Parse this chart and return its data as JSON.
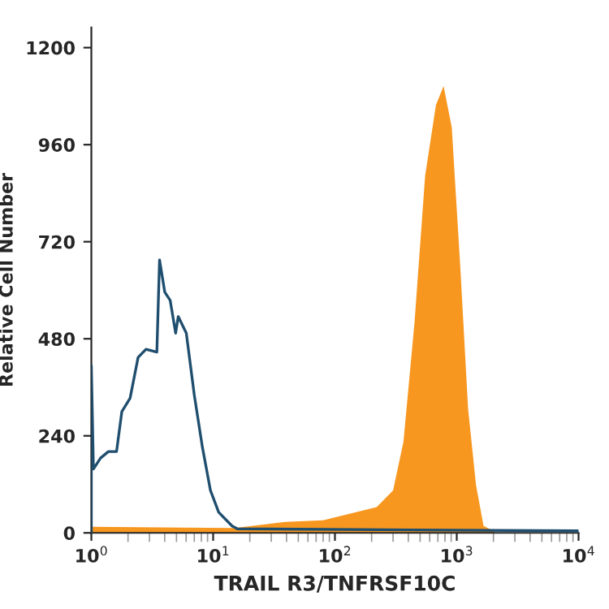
{
  "chart_data": {
    "type": "area",
    "xlabel": "TRAIL R3/TNFRSF10C",
    "ylabel": "Relative Cell Number",
    "log": "x",
    "xlim": [
      1,
      10000
    ],
    "ylim": [
      0,
      1250
    ],
    "xticks": [
      {
        "value": 1,
        "label": "10$^{0}$"
      },
      {
        "value": 10,
        "label": "10$^{1}$"
      },
      {
        "value": 100,
        "label": "10$^{2}$"
      },
      {
        "value": 1000,
        "label": "10$^{3}$"
      },
      {
        "value": 10000,
        "label": "10$^{4}$"
      }
    ],
    "yticks": [
      0,
      240,
      480,
      720,
      960,
      1200
    ],
    "grid": false,
    "series": [
      {
        "color": "#f7971f",
        "x": [
          1,
          15,
          39,
          80,
          220,
          300,
          365,
          450,
          550,
          675,
          780,
          910,
          1070,
          1240,
          1440,
          1660,
          2040
        ],
        "values": [
          15,
          12,
          27,
          31,
          64,
          105,
          225,
          520,
          883,
          1058,
          1105,
          1003,
          656,
          306,
          118,
          17,
          4
        ]
      },
      {
        "type": "line",
        "color": "#1f4e6e",
        "x": [
          1,
          1,
          1.04,
          1.19,
          1.38,
          1.61,
          1.78,
          2.08,
          2.42,
          2.81,
          3.45,
          3.63,
          4.01,
          4.44,
          4.92,
          5.17,
          6.02,
          7.01,
          8.16,
          9.5,
          11.1,
          14.3,
          15.8,
          10000
        ],
        "values": [
          0,
          414,
          158,
          185,
          201,
          201,
          300,
          333,
          434,
          454,
          447,
          675,
          595,
          575,
          494,
          535,
          494,
          340,
          212,
          105,
          51,
          17,
          10,
          5
        ]
      }
    ]
  }
}
